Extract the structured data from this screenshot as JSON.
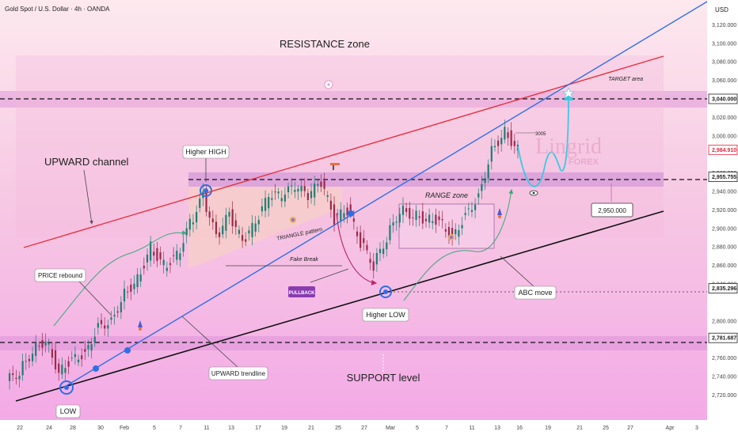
{
  "header": {
    "symbol": "Gold Spot / U.S. Dollar · 4h · OANDA",
    "currency": "USD"
  },
  "watermark": {
    "main": "Lingrid",
    "sub": "FOREX"
  },
  "annotations": {
    "resistance_zone": "RESISTANCE zone",
    "support_level": "SUPPORT level",
    "upward_channel": "UPWARD channel",
    "price_rebound": "PRICE rebound",
    "higher_high": "Higher HIGH",
    "triangle_pattern": "TRIANGLE pattern",
    "fake_break": "Fake Break",
    "pullback": "PULLBACK",
    "range_zone": "RANGE zone",
    "higher_low": "Higher LOW",
    "abc_move": "ABC move",
    "target_area": "TARGET area",
    "upward_trendline": "UPWARD trendline",
    "low": "LOW",
    "peak_3005": "3005"
  },
  "chart_data": {
    "type": "line",
    "title": "Gold Spot / U.S. Dollar · 4h · OANDA",
    "y_axis": {
      "unit": "USD",
      "ticks": [
        "3,120.000",
        "3,100.000",
        "3,080.000",
        "3,060.000",
        "3,020.000",
        "3,000.000",
        "2,960.000",
        "2,940.000",
        "2,920.000",
        "2,900.000",
        "2,880.000",
        "2,860.000",
        "2,840.000",
        "2,800.000",
        "2,760.000",
        "2,740.000",
        "2,720.000"
      ],
      "range": [
        2710,
        3135
      ]
    },
    "x_axis": {
      "ticks": [
        "22",
        "24",
        "28",
        "30",
        "Feb",
        "5",
        "7",
        "11",
        "13",
        "17",
        "19",
        "21",
        "25",
        "27",
        "Mar",
        "5",
        "7",
        "11",
        "13",
        "16",
        "19",
        "21",
        "25",
        "27",
        "Apr",
        "3"
      ]
    },
    "price_labels": [
      {
        "value": "3,040.000",
        "color": "#222222"
      },
      {
        "value": "2,984.910",
        "color": "#e0293f"
      },
      {
        "value": "2,955.755",
        "color": "#222222"
      },
      {
        "value": "2,835.296",
        "color": "#222222"
      },
      {
        "value": "2,781.687",
        "color": "#222222"
      }
    ],
    "callout_level": "2,950.000",
    "levels": [
      {
        "name": "target resistance",
        "value": 3040
      },
      {
        "name": "range top",
        "value": 2955.755
      },
      {
        "name": "higher low",
        "value": 2835.296
      },
      {
        "name": "support",
        "value": 2781.687
      }
    ],
    "series": [
      {
        "name": "",
        "values": [
          [
            "Jan 21",
            2735
          ],
          [
            "Jan 22",
            2745
          ],
          [
            "Jan 23",
            2768
          ],
          [
            "Jan 24",
            2780
          ],
          [
            "Jan 27",
            2745
          ],
          [
            "Jan 28",
            2760
          ],
          [
            "Jan 29",
            2765
          ],
          [
            "Jan 30",
            2795
          ],
          [
            "Jan 31",
            2800
          ],
          [
            "Feb 3",
            2830
          ],
          [
            "Feb 4",
            2845
          ],
          [
            "Feb 5",
            2880
          ],
          [
            "Feb 6",
            2860
          ],
          [
            "Feb 7",
            2870
          ],
          [
            "Feb 10",
            2905
          ],
          [
            "Feb 11",
            2935
          ],
          [
            "Feb 12",
            2890
          ],
          [
            "Feb 13",
            2915
          ],
          [
            "Feb 14",
            2885
          ],
          [
            "Feb 17",
            2905
          ],
          [
            "Feb 18",
            2935
          ],
          [
            "Feb 19",
            2935
          ],
          [
            "Feb 20",
            2945
          ],
          [
            "Feb 21",
            2935
          ],
          [
            "Feb 24",
            2950
          ],
          [
            "Feb 25",
            2910
          ],
          [
            "Feb 26",
            2920
          ],
          [
            "Feb 27",
            2885
          ],
          [
            "Feb 28",
            2860
          ],
          [
            "Mar 3",
            2890
          ],
          [
            "Mar 4",
            2920
          ],
          [
            "Mar 5",
            2915
          ],
          [
            "Mar 6",
            2910
          ],
          [
            "Mar 7",
            2910
          ],
          [
            "Mar 10",
            2890
          ],
          [
            "Mar 11",
            2915
          ],
          [
            "Mar 12",
            2935
          ],
          [
            "Mar 13",
            2985
          ],
          [
            "Mar 14",
            3005
          ],
          [
            "Mar 15",
            2985
          ]
        ]
      }
    ]
  }
}
